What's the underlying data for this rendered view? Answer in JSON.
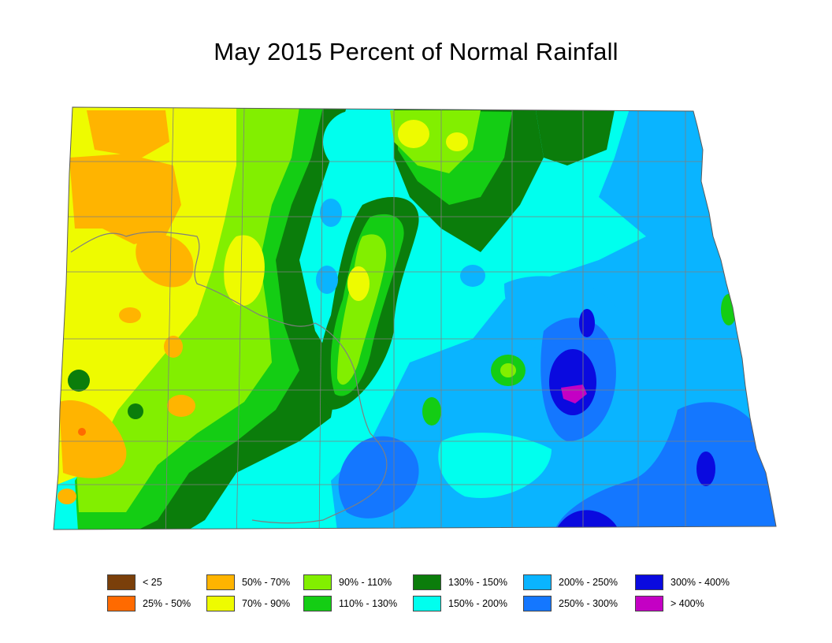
{
  "title": "May 2015 Percent of Normal Rainfall",
  "colors": {
    "lt25": "#7a3f0a",
    "p25_50": "#ff6a00",
    "p50_70": "#ffb400",
    "p70_90": "#eefb00",
    "p90_110": "#82ef00",
    "p110_130": "#14cd14",
    "p130_150": "#0b7d0b",
    "p150_200": "#00ffee",
    "p200_250": "#0ab4ff",
    "p250_300": "#1477ff",
    "p300_400": "#0a0adf",
    "gt400": "#c400c4"
  },
  "legend": [
    {
      "label": "< 25",
      "color_key": "lt25"
    },
    {
      "label": "25% - 50%",
      "color_key": "p25_50"
    },
    {
      "label": "50% - 70%",
      "color_key": "p50_70"
    },
    {
      "label": "70% - 90%",
      "color_key": "p70_90"
    },
    {
      "label": "90% - 110%",
      "color_key": "p90_110"
    },
    {
      "label": "110% - 130%",
      "color_key": "p110_130"
    },
    {
      "label": "130% - 150%",
      "color_key": "p130_150"
    },
    {
      "label": "150% - 200%",
      "color_key": "p150_200"
    },
    {
      "label": "200% - 250%",
      "color_key": "p200_250"
    },
    {
      "label": "250% - 300%",
      "color_key": "p250_300"
    },
    {
      "label": "300% - 400%",
      "color_key": "p300_400"
    },
    {
      "label": "> 400%",
      "color_key": "gt400"
    }
  ]
}
